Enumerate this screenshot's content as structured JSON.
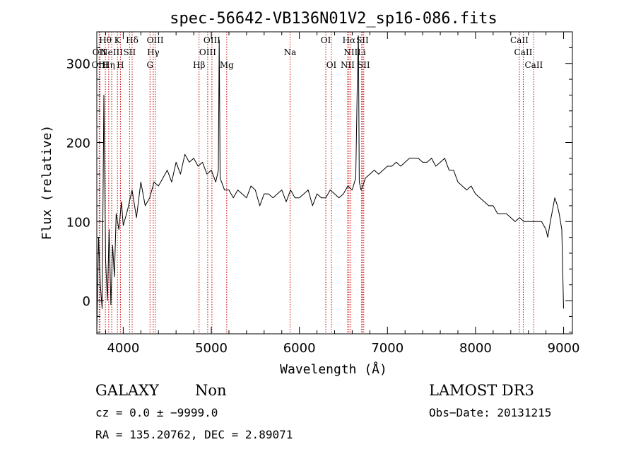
{
  "chart_data": {
    "type": "line",
    "title": "spec-56642-VB136N01V2_sp16-086.fits",
    "xlabel": "Wavelength (Å)",
    "ylabel": "Flux (relative)",
    "xlim": [
      3700,
      9100
    ],
    "ylim": [
      -42,
      340
    ],
    "xticks": [
      4000,
      5000,
      6000,
      7000,
      8000,
      9000
    ],
    "yticks": [
      0,
      100,
      200,
      300
    ],
    "grid": false,
    "line_color": "#000000",
    "marker_color": "#cc0000",
    "series": [
      {
        "x": [
          3700,
          3720,
          3740,
          3760,
          3780,
          3800,
          3820,
          3840,
          3860,
          3880,
          3900,
          3920,
          3950,
          3980,
          4000,
          4050,
          4100,
          4150,
          4200,
          4250,
          4300,
          4350,
          4400,
          4450,
          4500,
          4550,
          4600,
          4650,
          4700,
          4750,
          4800,
          4850,
          4900,
          4950,
          5000,
          5050,
          5080,
          5090,
          5100,
          5150,
          5200,
          5250,
          5300,
          5350,
          5400,
          5450,
          5500,
          5550,
          5600,
          5650,
          5700,
          5750,
          5800,
          5850,
          5900,
          5950,
          6000,
          6050,
          6100,
          6150,
          6200,
          6250,
          6300,
          6350,
          6400,
          6450,
          6500,
          6550,
          6600,
          6640,
          6660,
          6670,
          6680,
          6700,
          6720,
          6750,
          6800,
          6850,
          6900,
          6950,
          7000,
          7050,
          7100,
          7150,
          7200,
          7250,
          7300,
          7350,
          7400,
          7450,
          7500,
          7550,
          7600,
          7650,
          7700,
          7750,
          7800,
          7850,
          7900,
          7950,
          8000,
          8050,
          8100,
          8150,
          8200,
          8250,
          8300,
          8350,
          8400,
          8450,
          8500,
          8550,
          8600,
          8650,
          8700,
          8750,
          8800,
          8820,
          8850,
          8900,
          8930,
          8950,
          8980,
          9000
        ],
        "y": [
          -40,
          80,
          20,
          -10,
          260,
          50,
          0,
          90,
          -5,
          70,
          30,
          110,
          90,
          125,
          95,
          115,
          140,
          105,
          150,
          120,
          130,
          150,
          145,
          155,
          165,
          150,
          175,
          160,
          185,
          175,
          180,
          170,
          175,
          160,
          165,
          150,
          165,
          330,
          155,
          140,
          140,
          130,
          140,
          135,
          130,
          145,
          140,
          120,
          135,
          135,
          130,
          135,
          140,
          125,
          140,
          130,
          130,
          135,
          140,
          120,
          135,
          130,
          130,
          140,
          135,
          130,
          135,
          145,
          140,
          155,
          290,
          335,
          150,
          140,
          145,
          155,
          160,
          165,
          160,
          165,
          170,
          170,
          175,
          170,
          175,
          180,
          180,
          180,
          175,
          175,
          180,
          170,
          175,
          180,
          165,
          165,
          150,
          145,
          140,
          145,
          135,
          130,
          125,
          120,
          120,
          110,
          110,
          110,
          105,
          100,
          105,
          100,
          100,
          100,
          100,
          100,
          90,
          80,
          100,
          130,
          120,
          110,
          90,
          -10
        ]
      }
    ],
    "emission_lines": [
      {
        "wl": 3727,
        "label": "OII",
        "row": 1
      },
      {
        "wl": 3736,
        "label": "OIII",
        "row": 2
      },
      {
        "wl": 3797,
        "label": "Hθ",
        "row": 0
      },
      {
        "wl": 3835,
        "label": "Hη",
        "row": 2
      },
      {
        "wl": 3869,
        "label": "NeIII",
        "row": 1
      },
      {
        "wl": 3934,
        "label": "K",
        "row": 0
      },
      {
        "wl": 3968,
        "label": "H",
        "row": 2
      },
      {
        "wl": 4072,
        "label": "SII",
        "row": 1
      },
      {
        "wl": 4101,
        "label": "Hδ",
        "row": 0
      },
      {
        "wl": 4304,
        "label": "G",
        "row": 2
      },
      {
        "wl": 4341,
        "label": "Hγ",
        "row": 1
      },
      {
        "wl": 4363,
        "label": "OIII",
        "row": 0
      },
      {
        "wl": 4861,
        "label": "Hβ",
        "row": 2
      },
      {
        "wl": 4959,
        "label": "OIII",
        "row": 1
      },
      {
        "wl": 5007,
        "label": "OIII",
        "row": 0
      },
      {
        "wl": 5175,
        "label": "Mg",
        "row": 2
      },
      {
        "wl": 5894,
        "label": "Na",
        "row": 1
      },
      {
        "wl": 6300,
        "label": "OI",
        "row": 0
      },
      {
        "wl": 6364,
        "label": "OI",
        "row": 2
      },
      {
        "wl": 6548,
        "label": "NII",
        "row": 2
      },
      {
        "wl": 6563,
        "label": "Hα",
        "row": 0
      },
      {
        "wl": 6583,
        "label": "NII",
        "row": 1
      },
      {
        "wl": 6707,
        "label": "Li",
        "row": 1
      },
      {
        "wl": 6716,
        "label": "SII",
        "row": 0
      },
      {
        "wl": 6731,
        "label": "SII",
        "row": 2
      },
      {
        "wl": 8498,
        "label": "CaII",
        "row": 0
      },
      {
        "wl": 8542,
        "label": "CaII",
        "row": 1
      },
      {
        "wl": 8662,
        "label": "CaII",
        "row": 2
      }
    ]
  },
  "info": {
    "object_class": "GALAXY",
    "subclass": "Non",
    "cz": "cz = 0.0 ± −9999.0",
    "radec": "RA = 135.20762, DEC =    2.89071",
    "survey": "LAMOST DR3",
    "obs_date": "Obs−Date: 20131215"
  }
}
